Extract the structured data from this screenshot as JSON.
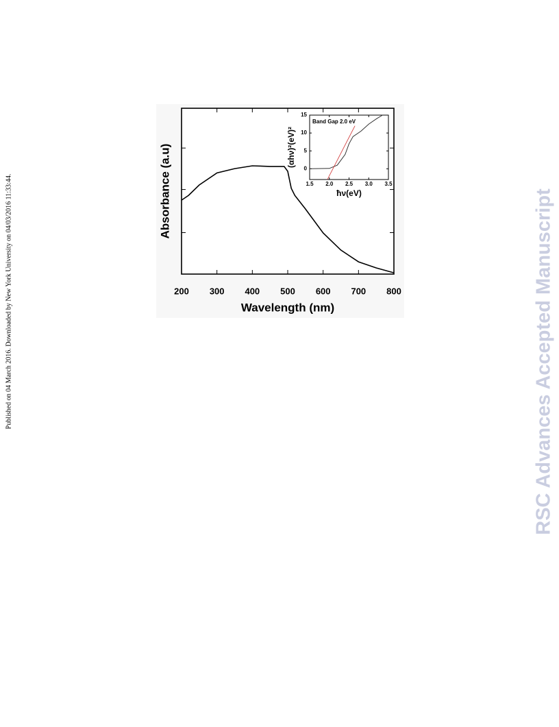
{
  "sidebar": "Published on 04 March 2016. Downloaded by New York University on 04/03/2016 11:33:44.",
  "watermark": "RSC Advances Accepted Manuscript",
  "chart_data": [
    {
      "type": "line",
      "xlabel": "Wavelength (nm)",
      "ylabel": "Absorbance (a.u)",
      "x": [
        200,
        220,
        250,
        300,
        350,
        400,
        450,
        490,
        500,
        510,
        520,
        550,
        600,
        650,
        700,
        750,
        800
      ],
      "series": [
        {
          "color": "#000000",
          "values": [
            0.446,
            0.475,
            0.537,
            0.61,
            0.636,
            0.653,
            0.649,
            0.649,
            0.62,
            0.517,
            0.475,
            0.393,
            0.248,
            0.145,
            0.074,
            0.037,
            0.008
          ]
        }
      ],
      "xlim": [
        200,
        800
      ],
      "xticks": [
        200,
        300,
        400,
        500,
        600,
        700,
        800
      ],
      "ylim": [
        0,
        1
      ],
      "yticks": [
        0.25,
        0.51,
        0.76
      ]
    },
    {
      "type": "line",
      "annotation": "Band Gap 2.0 eV",
      "xlabel": "ħν(eV)",
      "ylabel": "(αhν)²(eV)²",
      "x": [
        1.5,
        2.0,
        2.2,
        2.4,
        2.5,
        2.6,
        2.8,
        3.0,
        3.2,
        3.35
      ],
      "series": [
        {
          "color": "#333333",
          "values": [
            0,
            0.1,
            1,
            4,
            7,
            9,
            10.5,
            12.5,
            14,
            15
          ]
        }
      ],
      "fit": {
        "color": "#d03030",
        "x": [
          1.95,
          2.65
        ],
        "values": [
          -3,
          12
        ]
      },
      "xlim": [
        1.5,
        3.5
      ],
      "xticks": [
        1.5,
        {
          "value": 2,
          "label": "2.0"
        },
        2.5,
        {
          "value": 3,
          "label": "3.0"
        },
        3.5
      ],
      "ylim": [
        -3,
        15
      ],
      "yticks": [
        0,
        5,
        10,
        15
      ]
    }
  ]
}
